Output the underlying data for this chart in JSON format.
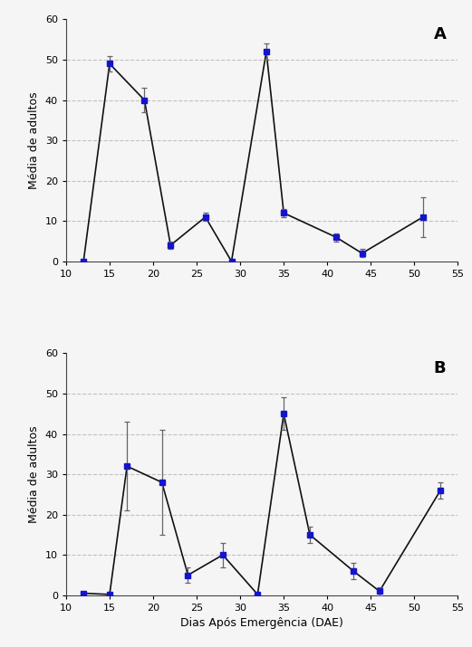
{
  "panel_A": {
    "label": "A",
    "x": [
      12,
      15,
      19,
      22,
      26,
      29,
      33,
      35,
      41,
      44,
      51
    ],
    "y": [
      0,
      49,
      40,
      4,
      11,
      0,
      52,
      12,
      6,
      2,
      11
    ],
    "yerr": [
      0.1,
      2,
      3,
      1,
      1,
      0.1,
      2,
      1,
      1,
      1,
      5
    ]
  },
  "panel_B": {
    "label": "B",
    "x": [
      12,
      15,
      17,
      21,
      24,
      28,
      32,
      35,
      38,
      43,
      46,
      53
    ],
    "y": [
      0.5,
      0.2,
      32,
      28,
      5,
      10,
      0.2,
      45,
      15,
      6,
      1,
      26
    ],
    "yerr": [
      0.1,
      0.1,
      11,
      13,
      2,
      3,
      0.1,
      4,
      2,
      2,
      1,
      2
    ]
  },
  "ylim": [
    0,
    60
  ],
  "xlim": [
    10,
    55
  ],
  "xticks": [
    10,
    15,
    20,
    25,
    30,
    35,
    40,
    45,
    50,
    55
  ],
  "yticks": [
    0,
    10,
    20,
    30,
    40,
    50,
    60
  ],
  "grid_yticks": [
    10,
    20,
    30,
    40,
    50
  ],
  "ylabel": "Média de adultos",
  "xlabel": "Dias Após Emergência (DAE)",
  "line_color": "#111111",
  "marker_color": "#1414cc",
  "marker": "s",
  "marker_size": 4,
  "grid_color": "#bbbbbb",
  "grid_style": "--",
  "grid_alpha": 0.9,
  "ecolor": "#666666",
  "capsize": 2,
  "linewidth": 1.2,
  "bg_color": "#f5f5f5"
}
